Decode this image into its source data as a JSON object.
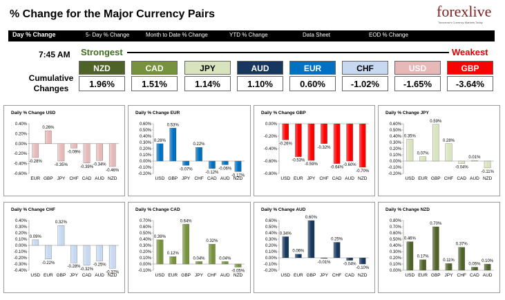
{
  "header": {
    "title": "% Change for the Major Currency Pairs",
    "logo": "forexlive",
    "logo_tag": "Tomorrow's Currency Markets Today"
  },
  "nav": {
    "items": [
      "Day % Change",
      "5- Day % Change",
      "Month to Date % Change",
      "YTD % Change",
      "Data Sheet",
      "EOD % Change"
    ]
  },
  "ranking": {
    "time": "7:45 AM",
    "strongest_label": "Strongest",
    "weakest_label": "Weakest",
    "cumulative_label_1": "Cumulative",
    "cumulative_label_2": "Changes",
    "items": [
      {
        "code": "NZD",
        "value": "1.96%",
        "bg": "#4f6228",
        "fg": "#ffffff"
      },
      {
        "code": "CAD",
        "value": "1.51%",
        "bg": "#76923c",
        "fg": "#ffffff"
      },
      {
        "code": "JPY",
        "value": "1.14%",
        "bg": "#d7e4bd",
        "fg": "#000000"
      },
      {
        "code": "AUD",
        "value": "1.10%",
        "bg": "#17375e",
        "fg": "#ffffff"
      },
      {
        "code": "EUR",
        "value": "0.60%",
        "bg": "#0070c0",
        "fg": "#ffffff"
      },
      {
        "code": "CHF",
        "value": "-1.02%",
        "bg": "#c6d9f1",
        "fg": "#000000"
      },
      {
        "code": "USD",
        "value": "-1.65%",
        "bg": "#e6b9b8",
        "fg": "#ffffff"
      },
      {
        "code": "GBP",
        "value": "-3.64%",
        "bg": "#ff0000",
        "fg": "#ffffff"
      }
    ]
  },
  "chart_data": [
    {
      "type": "bar",
      "title": "Daily % Change USD",
      "categories": [
        "EUR",
        "GBP",
        "JPY",
        "CHF",
        "CAD",
        "AUD",
        "NZD"
      ],
      "values": [
        -0.28,
        0.26,
        -0.35,
        -0.09,
        -0.39,
        -0.34,
        -0.46
      ],
      "labels": [
        "-0.28%",
        "0.26%",
        "-0.35%",
        "-0.09%",
        "-0.39%",
        "-0.34%",
        "-0.46%"
      ],
      "ylim": [
        -0.6,
        0.4
      ],
      "yticks": [
        "0.40%",
        "0.20%",
        "0.00%",
        "-0.20%",
        "-0.40%",
        "-0.60%"
      ],
      "color": "#e6b9b8"
    },
    {
      "type": "bar",
      "title": "Daily % Change EUR",
      "categories": [
        "USD",
        "GBP",
        "JPY",
        "CHF",
        "CAD",
        "AUD",
        "NZD"
      ],
      "values": [
        0.28,
        0.53,
        -0.07,
        0.22,
        -0.12,
        -0.06,
        -0.17
      ],
      "labels": [
        "0.28%",
        "0.53%",
        "-0.07%",
        "0.22%",
        "-0.12%",
        "-0.06%",
        "-0.17%"
      ],
      "ylim": [
        -0.2,
        0.6
      ],
      "yticks": [
        "0.60%",
        "0.50%",
        "0.40%",
        "0.30%",
        "0.20%",
        "0.10%",
        "0.00%",
        "-0.10%",
        "-0.20%"
      ],
      "color": "#0070c0"
    },
    {
      "type": "bar",
      "title": "Daily % Change GBP",
      "categories": [
        "USD",
        "EUR",
        "JPY",
        "CHF",
        "CAD",
        "AUD",
        "NZD"
      ],
      "values": [
        -0.26,
        -0.53,
        -0.59,
        -0.32,
        -0.64,
        -0.6,
        -0.7
      ],
      "labels": [
        "-0.26%",
        "-0.53%",
        "-0.59%",
        "-0.32%",
        "-0.64%",
        "-0.60%",
        "-0.70%"
      ],
      "ylim": [
        -0.8,
        0.0
      ],
      "yticks": [
        "0.00%",
        "-0.20%",
        "-0.40%",
        "-0.60%",
        "-0.80%"
      ],
      "color": "#ff0000"
    },
    {
      "type": "bar",
      "title": "Daily % Change JPY",
      "categories": [
        "USD",
        "EUR",
        "GBP",
        "CHF",
        "CAD",
        "AUD",
        "NZD"
      ],
      "values": [
        0.35,
        0.07,
        0.59,
        0.28,
        -0.04,
        0.01,
        -0.11
      ],
      "labels": [
        "0.35%",
        "0.07%",
        "0.59%",
        "0.28%",
        "-0.04%",
        "0.01%",
        "-0.11%"
      ],
      "ylim": [
        -0.2,
        0.6
      ],
      "yticks": [
        "0.60%",
        "0.50%",
        "0.40%",
        "0.30%",
        "0.20%",
        "0.10%",
        "0.00%",
        "-0.10%",
        "-0.20%"
      ],
      "color": "#d7e4bd"
    },
    {
      "type": "bar",
      "title": "Daily % Change CHF",
      "categories": [
        "USD",
        "EUR",
        "GBP",
        "JPY",
        "CAD",
        "AUD",
        "NZD"
      ],
      "values": [
        0.09,
        -0.22,
        0.32,
        -0.28,
        -0.32,
        -0.25,
        -0.37
      ],
      "labels": [
        "0.09%",
        "-0.22%",
        "0.32%",
        "-0.28%",
        "-0.32%",
        "-0.25%",
        "-0.37%"
      ],
      "ylim": [
        -0.4,
        0.4
      ],
      "yticks": [
        "0.40%",
        "0.30%",
        "0.20%",
        "0.10%",
        "0.00%",
        "-0.10%",
        "-0.20%",
        "-0.30%",
        "-0.40%"
      ],
      "color": "#c6d9f1"
    },
    {
      "type": "bar",
      "title": "Daily % Change CAD",
      "categories": [
        "USD",
        "EUR",
        "GBP",
        "JPY",
        "CHF",
        "AUD",
        "NZD"
      ],
      "values": [
        0.39,
        0.12,
        0.64,
        0.04,
        0.32,
        0.04,
        -0.05
      ],
      "labels": [
        "0.39%",
        "0.12%",
        "0.64%",
        "0.04%",
        "0.32%",
        "0.04%",
        "-0.05%"
      ],
      "ylim": [
        -0.1,
        0.7
      ],
      "yticks": [
        "0.70%",
        "0.60%",
        "0.50%",
        "0.40%",
        "0.30%",
        "0.20%",
        "0.10%",
        "0.00%",
        "-0.10%"
      ],
      "color": "#76923c"
    },
    {
      "type": "bar",
      "title": "Daily % Change AUD",
      "categories": [
        "USD",
        "EUR",
        "GBP",
        "JPY",
        "CHF",
        "CAD",
        "NZD"
      ],
      "values": [
        0.34,
        0.06,
        0.6,
        -0.01,
        0.25,
        -0.04,
        -0.1
      ],
      "labels": [
        "0.34%",
        "0.06%",
        "0.60%",
        "-0.01%",
        "0.25%",
        "-0.04%",
        "-0.10%"
      ],
      "ylim": [
        -0.2,
        0.6
      ],
      "yticks": [
        "0.60%",
        "0.50%",
        "0.40%",
        "0.30%",
        "0.20%",
        "0.10%",
        "0.00%",
        "-0.10%",
        "-0.20%"
      ],
      "color": "#17375e"
    },
    {
      "type": "bar",
      "title": "Daily % Change NZD",
      "categories": [
        "USD",
        "EUR",
        "GBP",
        "JPY",
        "CHF",
        "CAD",
        "AUD"
      ],
      "values": [
        0.46,
        0.17,
        0.7,
        0.11,
        0.37,
        0.05,
        0.1
      ],
      "labels": [
        "0.46%",
        "0.17%",
        "0.70%",
        "0.11%",
        "0.37%",
        "0.05%",
        "0.10%"
      ],
      "ylim": [
        0.0,
        0.8
      ],
      "yticks": [
        "0.80%",
        "0.70%",
        "0.60%",
        "0.50%",
        "0.40%",
        "0.30%",
        "0.20%",
        "0.10%",
        "0.00%"
      ],
      "color": "#4f6228"
    }
  ]
}
